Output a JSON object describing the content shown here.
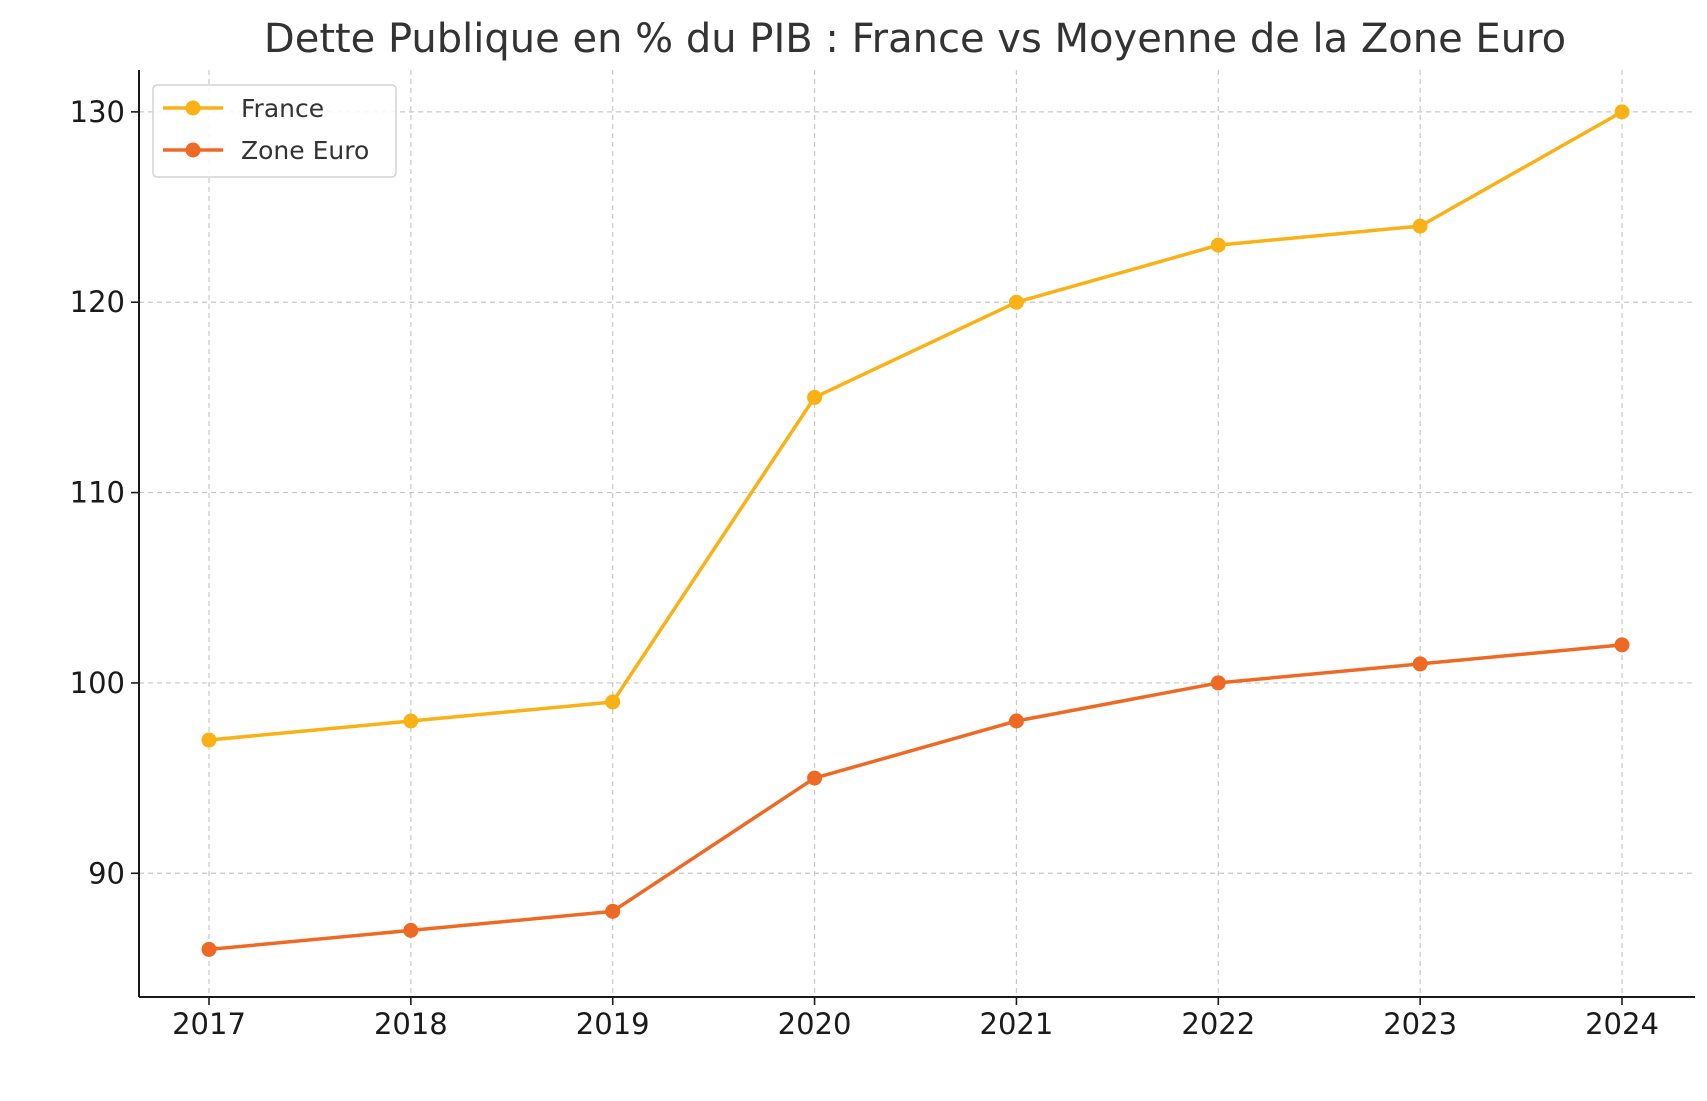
{
  "chart_data": {
    "type": "line",
    "title": "Dette Publique en % du PIB : France vs Moyenne de la Zone Euro",
    "xlabel": "",
    "ylabel": "",
    "categories": [
      "2017",
      "2018",
      "2019",
      "2020",
      "2021",
      "2022",
      "2023",
      "2024"
    ],
    "yticks": [
      90,
      100,
      110,
      120,
      130
    ],
    "ylim": [
      83.5,
      132.2
    ],
    "grid": true,
    "legend_position": "top-left",
    "series": [
      {
        "name": "France",
        "color": "#F9B115",
        "values": [
          97,
          98,
          99,
          115,
          120,
          123,
          124,
          130
        ]
      },
      {
        "name": "Zone Euro",
        "color": "#EE6A24",
        "values": [
          86,
          87,
          88,
          95,
          98,
          100,
          101,
          102
        ]
      }
    ]
  }
}
